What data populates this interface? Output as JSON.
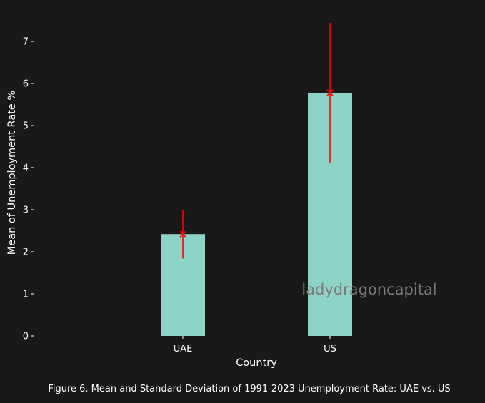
{
  "colors": {
    "background": "#191919",
    "bar": "#8dd3c7",
    "error": "#ff0000",
    "text": "#ffffff",
    "watermark": "#7a7a7a"
  },
  "watermark": "ladydragoncapital",
  "caption": "Figure 6. Mean and Standard Deviation of 1991-2023 Unemployment Rate: UAE vs. US",
  "chart_data": {
    "type": "bar",
    "categories": [
      "UAE",
      "US"
    ],
    "values": [
      2.42,
      5.78
    ],
    "error": [
      0.58,
      1.66
    ],
    "error_marker": "x",
    "xlabel": "Country",
    "ylabel": "Mean of Unemployment Rate %",
    "yticks": [
      0,
      1,
      2,
      3,
      4,
      5,
      6,
      7
    ],
    "ylim": [
      0,
      7.6
    ],
    "grid": false,
    "legend": "none"
  }
}
